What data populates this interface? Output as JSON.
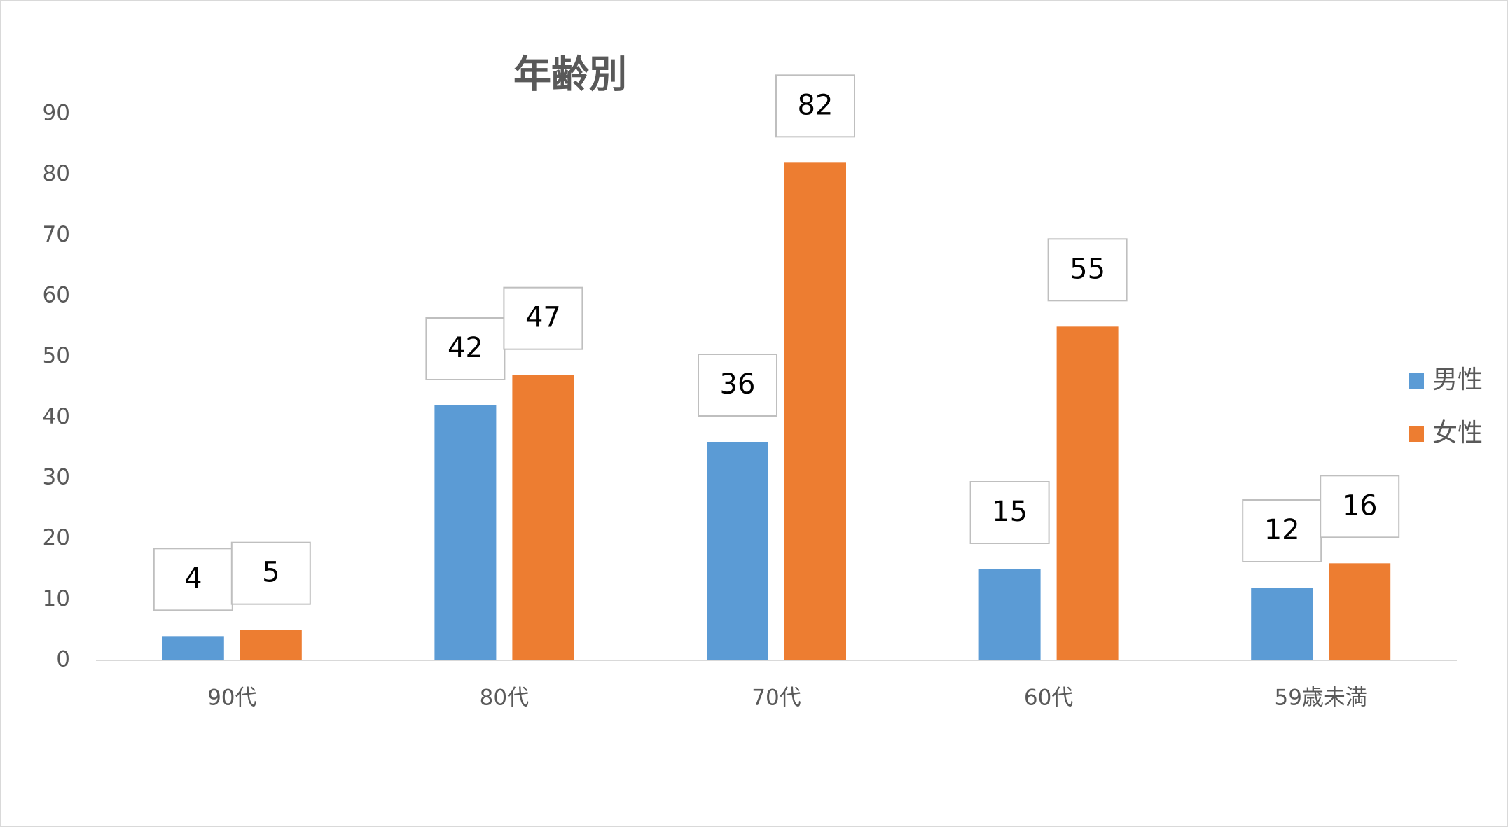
{
  "chart_data": {
    "type": "bar",
    "title": "年齢別",
    "categories": [
      "90代",
      "80代",
      "70代",
      "60代",
      "59歳未満"
    ],
    "series": [
      {
        "name": "男性",
        "color": "#5b9bd5",
        "values": [
          4,
          42,
          36,
          15,
          12
        ]
      },
      {
        "name": "女性",
        "color": "#ed7d31",
        "values": [
          5,
          47,
          82,
          55,
          16
        ]
      }
    ],
    "ylim": [
      0,
      90
    ],
    "yticks": [
      0,
      10,
      20,
      30,
      40,
      50,
      60,
      70,
      80,
      90
    ],
    "grid": false,
    "legend": "right"
  }
}
